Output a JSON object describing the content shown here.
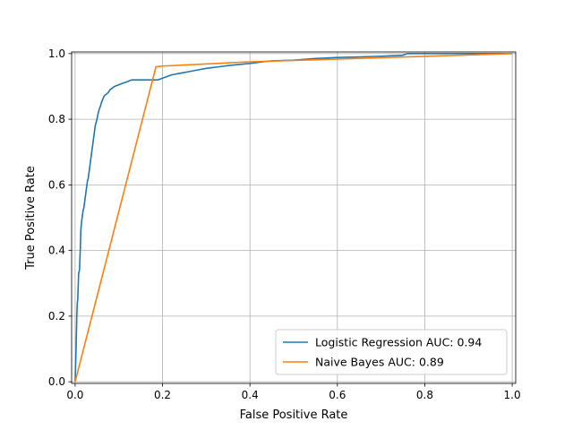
{
  "chart_data": {
    "type": "line",
    "xlabel": "False Positive Rate",
    "ylabel": "True Positive Rate",
    "xlim": [
      -0.008,
      1.008
    ],
    "ylim": [
      -0.005,
      1.005
    ],
    "xticks": [
      0.0,
      0.2,
      0.4,
      0.6,
      0.8,
      1.0
    ],
    "yticks": [
      0.0,
      0.2,
      0.4,
      0.6,
      0.8,
      1.0
    ],
    "xtick_labels": [
      "0.0",
      "0.2",
      "0.4",
      "0.6",
      "0.8",
      "1.0"
    ],
    "ytick_labels": [
      "0.0",
      "0.2",
      "0.4",
      "0.6",
      "0.8",
      "1.0"
    ],
    "grid": true,
    "legend_position": "lower-right",
    "series": [
      {
        "name": "Logistic Regression AUC: 0.94",
        "color": "#1f77b4",
        "x": [
          0.0,
          0.002,
          0.003,
          0.004,
          0.005,
          0.006,
          0.008,
          0.01,
          0.012,
          0.013,
          0.015,
          0.016,
          0.018,
          0.02,
          0.022,
          0.024,
          0.026,
          0.028,
          0.03,
          0.032,
          0.035,
          0.038,
          0.04,
          0.043,
          0.046,
          0.05,
          0.053,
          0.055,
          0.058,
          0.06,
          0.063,
          0.066,
          0.07,
          0.075,
          0.08,
          0.085,
          0.09,
          0.1,
          0.11,
          0.12,
          0.13,
          0.14,
          0.15,
          0.17,
          0.19,
          0.2,
          0.21,
          0.22,
          0.24,
          0.26,
          0.28,
          0.3,
          0.33,
          0.36,
          0.4,
          0.43,
          0.45,
          0.5,
          0.55,
          0.6,
          0.65,
          0.7,
          0.75,
          0.76,
          0.8,
          0.9,
          1.0
        ],
        "y": [
          0.0,
          0.09,
          0.15,
          0.21,
          0.24,
          0.25,
          0.33,
          0.34,
          0.41,
          0.46,
          0.49,
          0.5,
          0.52,
          0.53,
          0.55,
          0.57,
          0.59,
          0.61,
          0.62,
          0.64,
          0.67,
          0.7,
          0.72,
          0.75,
          0.78,
          0.8,
          0.82,
          0.83,
          0.84,
          0.85,
          0.86,
          0.87,
          0.875,
          0.88,
          0.89,
          0.895,
          0.9,
          0.905,
          0.91,
          0.915,
          0.92,
          0.92,
          0.92,
          0.92,
          0.92,
          0.925,
          0.93,
          0.935,
          0.94,
          0.945,
          0.95,
          0.955,
          0.96,
          0.965,
          0.97,
          0.975,
          0.978,
          0.98,
          0.985,
          0.988,
          0.99,
          0.992,
          0.995,
          1.0,
          1.0,
          1.0,
          1.0
        ]
      },
      {
        "name": "Naive Bayes AUC: 0.89",
        "color": "#ff7f0e",
        "x": [
          0.0,
          0.185,
          0.2,
          0.4,
          1.0
        ],
        "y": [
          0.0,
          0.96,
          0.962,
          0.975,
          1.0
        ]
      }
    ]
  }
}
